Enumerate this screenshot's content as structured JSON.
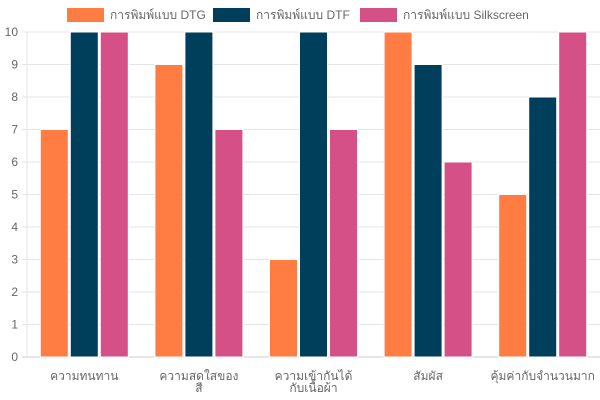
{
  "chart_data": {
    "type": "bar",
    "title": "",
    "xlabel": "",
    "ylabel": "",
    "ylim": [
      0,
      10
    ],
    "yticks": [
      0,
      1,
      2,
      3,
      4,
      5,
      6,
      7,
      8,
      9,
      10
    ],
    "grid": true,
    "legend_position": "top",
    "categories": [
      [
        "ความทนทาน"
      ],
      [
        "ความสดใสของ",
        "สี"
      ],
      [
        "ความเข้ากันได้",
        "กับเนื้อผ้า"
      ],
      [
        "สัมผัส"
      ],
      [
        "คุ้มค่ากับจำนวนมาก"
      ]
    ],
    "series": [
      {
        "name": "การพิมพ์แบบ DTG",
        "color": "#FF7C43",
        "values": [
          7,
          9,
          3,
          10,
          5
        ]
      },
      {
        "name": "การพิมพ์แบบ DTF",
        "color": "#003F5C",
        "values": [
          10,
          10,
          10,
          9,
          8
        ]
      },
      {
        "name": "การพิมพ์แบบ Silkscreen",
        "color": "#D45087",
        "values": [
          10,
          7,
          7,
          6,
          10
        ]
      }
    ]
  }
}
